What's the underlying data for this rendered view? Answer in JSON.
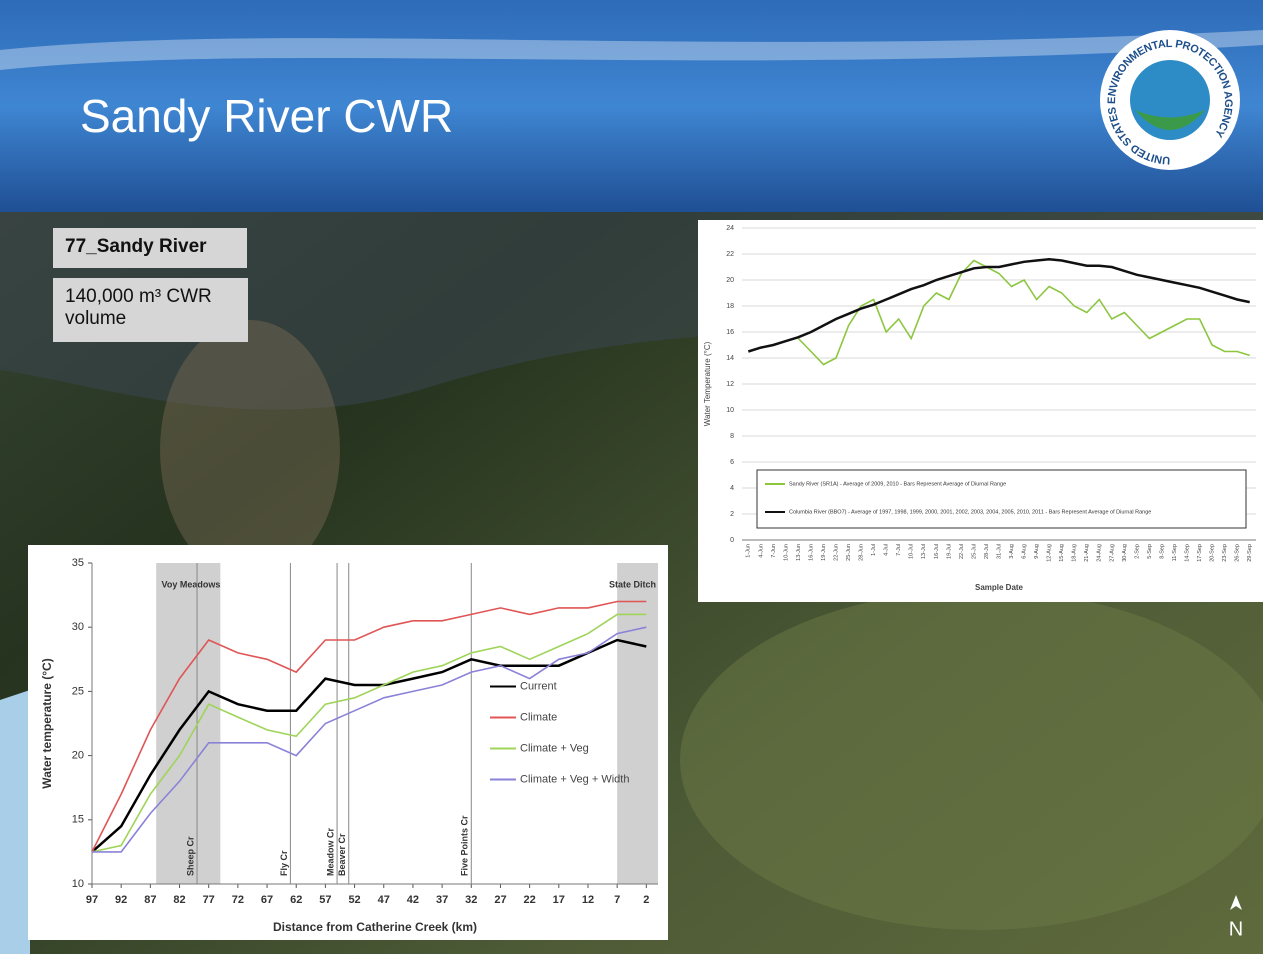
{
  "slide": {
    "title": "Sandy River CWR",
    "site_label": "77_Sandy River",
    "volume_label": "140,000 m³ CWR volume",
    "logo_text": "UNITED STATES ENVIRONMENTAL PROTECTION AGENCY",
    "north": "N"
  },
  "chart_data": [
    {
      "type": "line",
      "y_label": "Water Temperature (°C)",
      "x_label": "Sample Date",
      "categories": [
        "1-Jun",
        "4-Jun",
        "7-Jun",
        "10-Jun",
        "13-Jun",
        "16-Jun",
        "19-Jun",
        "22-Jun",
        "25-Jun",
        "28-Jun",
        "1-Jul",
        "4-Jul",
        "7-Jul",
        "10-Jul",
        "13-Jul",
        "16-Jul",
        "19-Jul",
        "22-Jul",
        "25-Jul",
        "28-Jul",
        "31-Jul",
        "3-Aug",
        "6-Aug",
        "9-Aug",
        "12-Aug",
        "15-Aug",
        "18-Aug",
        "21-Aug",
        "24-Aug",
        "27-Aug",
        "30-Aug",
        "2-Sep",
        "5-Sep",
        "8-Sep",
        "11-Sep",
        "14-Sep",
        "17-Sep",
        "20-Sep",
        "23-Sep",
        "26-Sep",
        "29-Sep"
      ],
      "series": [
        {
          "name": "Sandy River (SR1A) - Average of 2009, 2010 - Bars Represent Average of Diurnal Range",
          "color": "#8cc63f",
          "values": [
            null,
            null,
            null,
            null,
            15.5,
            14.5,
            13.5,
            14.0,
            16.5,
            18.0,
            18.5,
            16.0,
            17.0,
            15.5,
            18.0,
            19.0,
            18.5,
            20.5,
            21.5,
            21.0,
            20.5,
            19.5,
            20.0,
            18.5,
            19.5,
            19.0,
            18.0,
            17.5,
            18.5,
            17.0,
            17.5,
            16.5,
            15.5,
            16.0,
            16.5,
            17.0,
            17.0,
            15.0,
            14.5,
            14.5,
            14.2
          ]
        },
        {
          "name": "Columbia River (BBO7) - Average of 1997, 1998, 1999, 2000, 2001, 2002, 2003, 2004, 2005, 2010, 2011 - Bars Represent Average of Diurnal Range",
          "color": "#111111",
          "values": [
            14.5,
            14.8,
            15.0,
            15.3,
            15.6,
            16.0,
            16.5,
            17.0,
            17.4,
            17.8,
            18.1,
            18.5,
            18.9,
            19.3,
            19.6,
            20.0,
            20.3,
            20.6,
            20.9,
            21.0,
            21.0,
            21.2,
            21.4,
            21.5,
            21.6,
            21.5,
            21.3,
            21.1,
            21.1,
            21.0,
            20.7,
            20.4,
            20.2,
            20.0,
            19.8,
            19.6,
            19.4,
            19.1,
            18.8,
            18.5,
            18.3
          ]
        }
      ],
      "ylim": [
        0,
        24
      ],
      "yticks": [
        0,
        2,
        4,
        6,
        8,
        10,
        12,
        14,
        16,
        18,
        20,
        22,
        24
      ],
      "grid": true,
      "legend": "lower center"
    },
    {
      "type": "line",
      "y_label": "Water temperature (°C)",
      "x_label": "Distance from Catherine Creek (km)",
      "x": [
        97,
        92,
        87,
        82,
        77,
        72,
        67,
        62,
        57,
        52,
        47,
        42,
        37,
        32,
        27,
        22,
        17,
        12,
        7,
        2
      ],
      "series": [
        {
          "name": "Current",
          "color": "#000000",
          "values": [
            12.5,
            14.5,
            18.5,
            22,
            25,
            24,
            23.5,
            23.5,
            26,
            25.5,
            25.5,
            26,
            26.5,
            27.5,
            27,
            27,
            27,
            28,
            29,
            28.5
          ]
        },
        {
          "name": "Climate",
          "color": "#e05555",
          "values": [
            12.5,
            17,
            22,
            26,
            29,
            28,
            27.5,
            26.5,
            29,
            29,
            30,
            30.5,
            30.5,
            31,
            31.5,
            31,
            31.5,
            31.5,
            32,
            32
          ]
        },
        {
          "name": "Climate + Veg",
          "color": "#9fd45a",
          "values": [
            12.5,
            13,
            17,
            20,
            24,
            23,
            22,
            21.5,
            24,
            24.5,
            25.5,
            26.5,
            27,
            28,
            28.5,
            27.5,
            28.5,
            29.5,
            31,
            31
          ]
        },
        {
          "name": "Climate + Veg + Width",
          "color": "#8a82d8",
          "values": [
            12.5,
            12.5,
            15.5,
            18,
            21,
            21,
            21,
            20,
            22.5,
            23.5,
            24.5,
            25,
            25.5,
            26.5,
            27,
            26,
            27.5,
            28,
            29.5,
            30
          ]
        }
      ],
      "xlim": [
        97,
        0
      ],
      "xticks": [
        97,
        92,
        87,
        82,
        77,
        72,
        67,
        62,
        57,
        52,
        47,
        42,
        37,
        32,
        27,
        22,
        17,
        12,
        7,
        2
      ],
      "ylim": [
        10,
        35
      ],
      "yticks": [
        10,
        15,
        20,
        25,
        30,
        35
      ],
      "grid": false,
      "legend": "center right",
      "regions": [
        {
          "label": "Voy Meadows",
          "from": 86,
          "to": 75
        },
        {
          "label": "State Ditch",
          "from": 7,
          "to": 0
        }
      ],
      "markers": [
        {
          "label": "Sheep Cr",
          "x": 79
        },
        {
          "label": "Fly Cr",
          "x": 63
        },
        {
          "label": "Meadow Cr",
          "x": 55
        },
        {
          "label": "Beaver Cr",
          "x": 53
        },
        {
          "label": "Five Points Cr",
          "x": 32
        }
      ]
    }
  ]
}
